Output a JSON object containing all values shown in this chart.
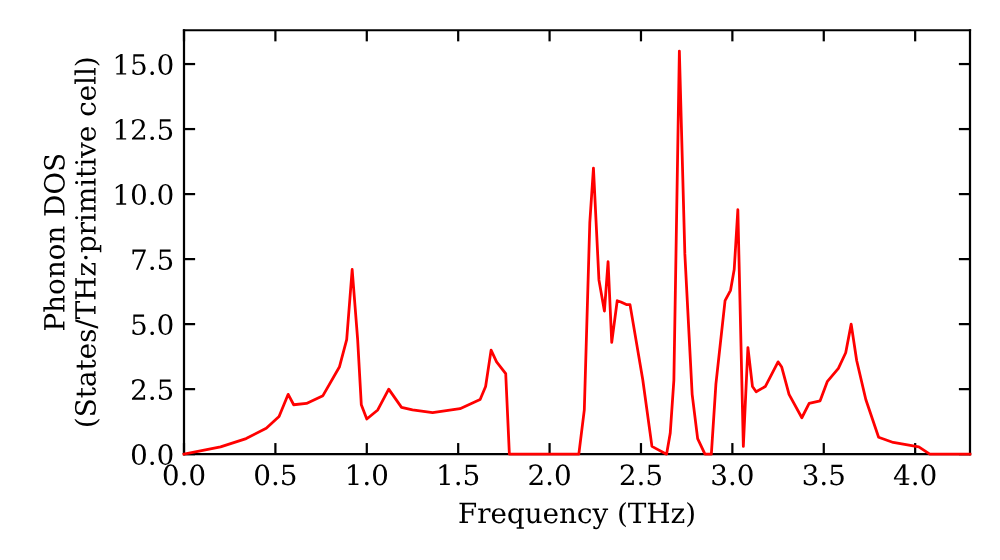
{
  "chart_data": {
    "type": "line",
    "xlabel": "Frequency (THz)",
    "ylabel": "Phonon DOS\n(States/THz·primitive cell)",
    "xlim": [
      0,
      4.3
    ],
    "ylim": [
      0,
      16.3
    ],
    "xticks": [
      {
        "value": 0,
        "label": "0.0"
      },
      {
        "value": 0.5,
        "label": "0.5"
      },
      {
        "value": 1,
        "label": "1.0"
      },
      {
        "value": 1.5,
        "label": "1.5"
      },
      {
        "value": 2,
        "label": "2.0"
      },
      {
        "value": 2.5,
        "label": "2.5"
      },
      {
        "value": 3,
        "label": "3.0"
      },
      {
        "value": 3.5,
        "label": "3.5"
      },
      {
        "value": 4,
        "label": "4.0"
      }
    ],
    "yticks": [
      {
        "value": 0,
        "label": "0.0"
      },
      {
        "value": 2.5,
        "label": "2.5"
      },
      {
        "value": 5,
        "label": "5.0"
      },
      {
        "value": 7.5,
        "label": "7.5"
      },
      {
        "value": 10,
        "label": "10.0"
      },
      {
        "value": 12.5,
        "label": "12.5"
      },
      {
        "value": 15,
        "label": "15.0"
      }
    ],
    "grid": false,
    "line_style": "solid",
    "marker": "none",
    "series": [
      {
        "color": "#ff0000",
        "x": [
          0,
          0.2,
          0.34,
          0.45,
          0.52,
          0.57,
          0.6,
          0.67,
          0.76,
          0.85,
          0.89,
          0.92,
          0.95,
          0.97,
          1.0,
          1.06,
          1.12,
          1.19,
          1.25,
          1.36,
          1.51,
          1.62,
          1.65,
          1.68,
          1.71,
          1.76,
          1.78,
          2.0,
          2.16,
          2.19,
          2.22,
          2.24,
          2.27,
          2.3,
          2.32,
          2.34,
          2.37,
          2.39,
          2.42,
          2.44,
          2.51,
          2.56,
          2.64,
          2.66,
          2.68,
          2.71,
          2.74,
          2.78,
          2.81,
          2.85,
          2.885,
          2.91,
          2.96,
          2.99,
          3.01,
          3.03,
          3.06,
          3.085,
          3.11,
          3.13,
          3.18,
          3.25,
          3.27,
          3.31,
          3.38,
          3.42,
          3.48,
          3.52,
          3.58,
          3.62,
          3.65,
          3.68,
          3.73,
          3.8,
          3.88,
          4.02,
          4.08,
          4.3
        ],
        "values": [
          0,
          0.28,
          0.6,
          1.0,
          1.45,
          2.3,
          1.9,
          1.95,
          2.25,
          3.35,
          4.4,
          7.1,
          4.4,
          1.9,
          1.35,
          1.7,
          2.5,
          1.8,
          1.7,
          1.6,
          1.75,
          2.1,
          2.6,
          4.0,
          3.55,
          3.1,
          0,
          0,
          0,
          1.7,
          8.9,
          11.0,
          6.7,
          5.5,
          7.4,
          4.3,
          5.9,
          5.85,
          5.75,
          5.75,
          2.85,
          0.3,
          0,
          0.8,
          2.85,
          15.5,
          7.7,
          2.3,
          0.6,
          0,
          0,
          2.7,
          5.9,
          6.3,
          7.1,
          9.4,
          0.3,
          4.1,
          2.6,
          2.4,
          2.6,
          3.55,
          3.35,
          2.3,
          1.4,
          1.95,
          2.05,
          2.8,
          3.3,
          3.9,
          5.0,
          3.6,
          2.1,
          0.65,
          0.45,
          0.28,
          0,
          0
        ]
      }
    ]
  }
}
